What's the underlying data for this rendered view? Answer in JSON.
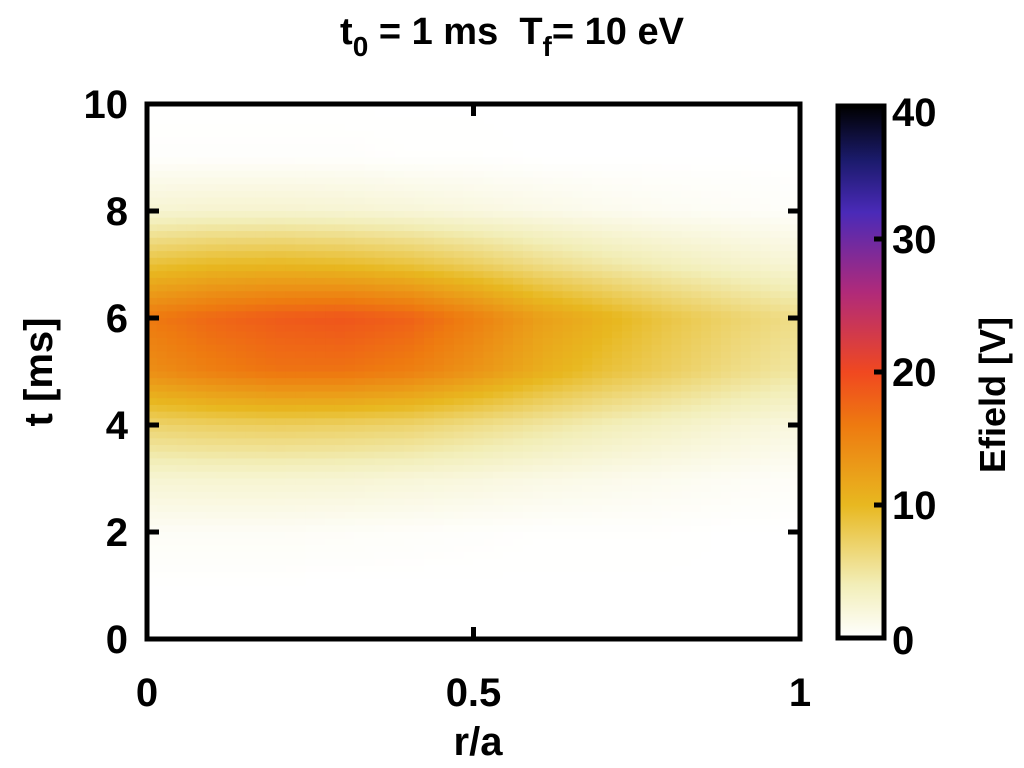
{
  "chart_data": {
    "type": "heatmap",
    "title_parts": {
      "t_var": "t",
      "t_sub": "0",
      "t_rest": " = 1 ms  ",
      "T_var": "T",
      "T_sub": "f",
      "T_rest": "= 10 eV"
    },
    "xlabel": "r/a",
    "ylabel": "t [ms]",
    "xlim": [
      0,
      1
    ],
    "ylim": [
      0,
      10
    ],
    "xticks": [
      "0",
      "0.5",
      "1"
    ],
    "xtick_values": [
      0,
      0.5,
      1
    ],
    "yticks": [
      "0",
      "2",
      "4",
      "6",
      "8",
      "10"
    ],
    "ytick_values": [
      0,
      2,
      4,
      6,
      8,
      10
    ],
    "colorbar": {
      "label": "Efield [V]",
      "range": [
        0,
        40
      ],
      "ticks": [
        "0",
        "10",
        "20",
        "30",
        "40"
      ],
      "tick_values": [
        0,
        10,
        20,
        30,
        40
      ],
      "colormap_stops": [
        {
          "value": 0,
          "color": "#ffffff"
        },
        {
          "value": 4,
          "color": "#f2eeb8"
        },
        {
          "value": 10,
          "color": "#e8b820"
        },
        {
          "value": 16,
          "color": "#ee7a10"
        },
        {
          "value": 20,
          "color": "#f04820"
        },
        {
          "value": 26,
          "color": "#b02a7a"
        },
        {
          "value": 32,
          "color": "#4a2ab8"
        },
        {
          "value": 36,
          "color": "#1a1a6a"
        },
        {
          "value": 40,
          "color": "#000000"
        }
      ]
    },
    "r_values": [
      0,
      0.1,
      0.2,
      0.3,
      0.4,
      0.5,
      0.6,
      0.7,
      0.8,
      0.9,
      1.0
    ],
    "t_values": [
      0,
      1,
      2,
      3,
      4,
      5,
      6,
      7,
      8,
      9,
      10
    ],
    "z_values": [
      [
        0,
        0,
        0,
        0,
        0,
        0,
        0,
        0,
        0,
        0,
        0
      ],
      [
        0,
        0,
        0,
        0,
        0,
        0,
        0,
        0,
        0,
        0,
        0
      ],
      [
        0.5,
        0.5,
        0.5,
        0.4,
        0.3,
        0.2,
        0.1,
        0.1,
        0.1,
        0.0,
        0.0
      ],
      [
        2.5,
        2.6,
        2.6,
        2.5,
        2.2,
        1.9,
        1.5,
        1.2,
        0.9,
        0.6,
        0.4
      ],
      [
        7,
        7.4,
        7.6,
        7.4,
        7.0,
        6.0,
        5.0,
        4.0,
        3.2,
        2.4,
        1.8
      ],
      [
        14,
        15.5,
        16.5,
        16.5,
        15.5,
        13.5,
        11.0,
        9.0,
        7.5,
        6.0,
        4.8
      ],
      [
        16,
        17.5,
        18.5,
        19,
        18,
        15.5,
        12.5,
        10.5,
        8.5,
        7.0,
        5.8
      ],
      [
        9,
        9.8,
        10.0,
        9.6,
        8.8,
        7.5,
        6.0,
        4.8,
        3.8,
        3.0,
        2.3
      ],
      [
        2.5,
        2.7,
        2.7,
        2.5,
        2.2,
        1.8,
        1.4,
        1.0,
        0.7,
        0.5,
        0.3
      ],
      [
        0.2,
        0.2,
        0.2,
        0.2,
        0.1,
        0.1,
        0.0,
        0.0,
        0.0,
        0.0,
        0.0
      ],
      [
        0,
        0,
        0,
        0,
        0,
        0,
        0,
        0,
        0,
        0,
        0
      ]
    ]
  }
}
